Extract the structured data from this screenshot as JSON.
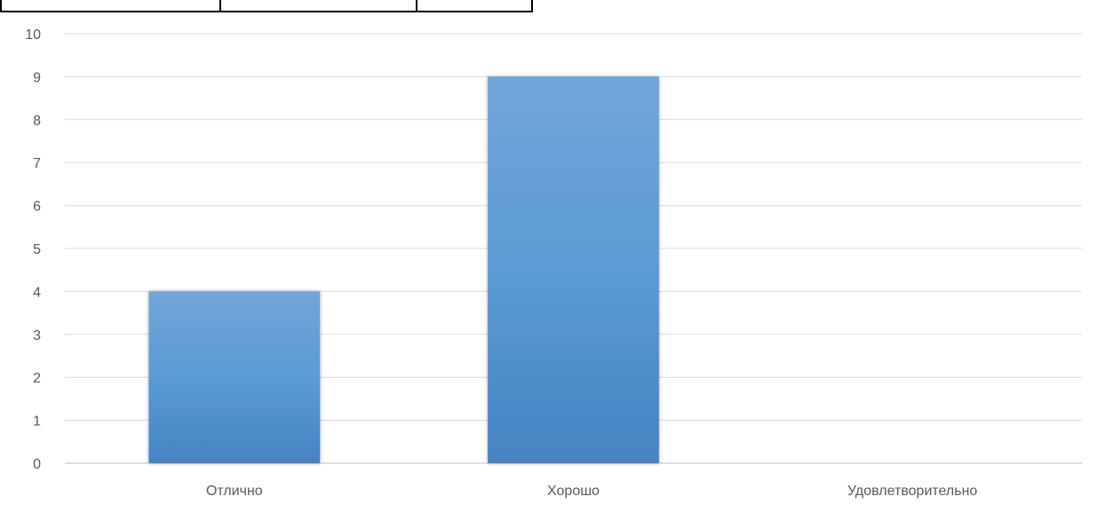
{
  "chart_data": {
    "type": "bar",
    "categories": [
      "Отлично",
      "Хорошо",
      "Удовлетворительно"
    ],
    "values": [
      4,
      9,
      0
    ],
    "title": "",
    "xlabel": "",
    "ylabel": "",
    "ylim": [
      0,
      10
    ],
    "yticks": [
      "0",
      "1",
      "2",
      "3",
      "4",
      "5",
      "6",
      "7",
      "8",
      "9",
      "10"
    ],
    "grid": true,
    "legend": "none",
    "colors": {
      "bar_top": "#72a5d8",
      "bar_mid": "#5b9bd5",
      "bar_bottom": "#4583c2",
      "grid": "#d9d9d9",
      "axis": "#bfbfbf",
      "text": "#595959"
    }
  }
}
